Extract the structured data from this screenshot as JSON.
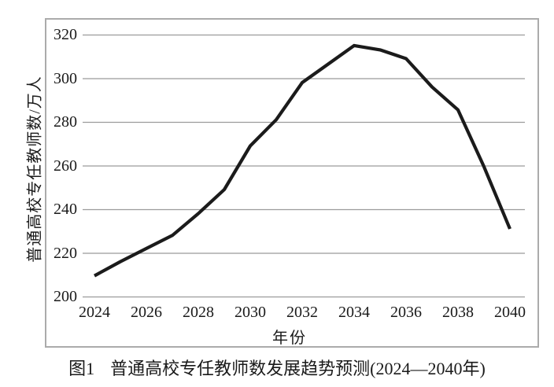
{
  "figure": {
    "caption_prefix": "图1",
    "caption": "普通高校专任教师数发展趋势预测(2024—2040年)"
  },
  "chart_data": {
    "type": "line",
    "title": "",
    "xlabel": "年份",
    "ylabel": "普通高校专任教师数/万人",
    "x": [
      2024,
      2025,
      2026,
      2027,
      2028,
      2029,
      2030,
      2031,
      2032,
      2033,
      2034,
      2035,
      2036,
      2037,
      2038,
      2039,
      2040
    ],
    "values": [
      209.5,
      216,
      222,
      228,
      238,
      249,
      269,
      281,
      298,
      306.5,
      315,
      313,
      309,
      296,
      285.5,
      259.5,
      231
    ],
    "series_name": "普通高校专任教师数",
    "xticks": [
      "2024",
      "2026",
      "2028",
      "2030",
      "2032",
      "2034",
      "2036",
      "2038",
      "2040"
    ],
    "yticks": [
      "320",
      "300",
      "280",
      "260",
      "240",
      "220",
      "200"
    ],
    "xlim": [
      2024,
      2040
    ],
    "ylim": [
      200,
      320
    ],
    "grid": "horizontal-only",
    "legend": "none",
    "line_color": "#1b1b1b",
    "grid_color": "#9b9b9b",
    "frame_color": "#ababab",
    "text_color": "#1a1a1a"
  }
}
